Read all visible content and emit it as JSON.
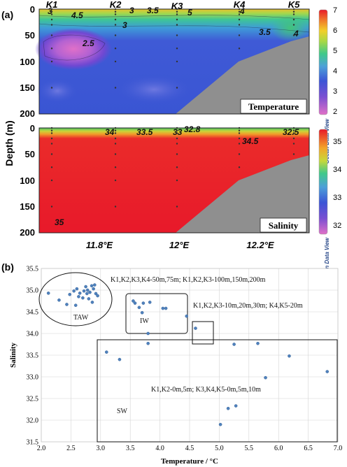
{
  "chart_data": [
    {
      "type": "heatmap",
      "panel_label": "(a)",
      "title": "Temperature",
      "ylabel": "Depth (m)",
      "ylim": [
        200,
        0
      ],
      "yticks": [
        0,
        50,
        100,
        150,
        200
      ],
      "stations": [
        "K1",
        "K2",
        "K3",
        "K4",
        "K5"
      ],
      "contour_labels": [
        "4.5",
        "3",
        "3.5",
        "3",
        "5",
        "4",
        "3.5",
        "4",
        "2.5",
        "3"
      ],
      "colorbar": {
        "min": 2,
        "max": 7,
        "ticks": [
          7,
          6,
          5,
          4,
          3,
          2
        ],
        "label": "Ocean Data View"
      }
    },
    {
      "type": "heatmap",
      "title": "Salinity",
      "ylim": [
        200,
        0
      ],
      "yticks": [
        0,
        50,
        100,
        150,
        200
      ],
      "xticks": [
        "11.8°E",
        "12°E",
        "12.2°E"
      ],
      "contour_labels": [
        "34",
        "33.5",
        "33",
        "32.8",
        "34.5",
        "32.5",
        "35"
      ],
      "colorbar": {
        "min": 32,
        "max": 35,
        "ticks": [
          35,
          34,
          33,
          32
        ],
        "label": "Ocean Data View"
      }
    },
    {
      "type": "scatter",
      "panel_label": "(b)",
      "xlabel": "Temperature / °C",
      "ylabel": "Salinity",
      "xlim": [
        2.0,
        7.0
      ],
      "ylim": [
        31.5,
        35.5
      ],
      "xticks": [
        "2.0",
        "2.5",
        "3.0",
        "3.5",
        "4.0",
        "4.5",
        "5.0",
        "5.5",
        "6.0",
        "6.5",
        "7.0"
      ],
      "yticks": [
        "35.5",
        "35.0",
        "34.5",
        "34.0",
        "33.5",
        "33.0",
        "32.5",
        "32.0",
        "31.5"
      ],
      "grid": true,
      "points": [
        [
          2.12,
          34.93
        ],
        [
          2.3,
          34.77
        ],
        [
          2.43,
          34.67
        ],
        [
          2.48,
          34.9
        ],
        [
          2.55,
          34.98
        ],
        [
          2.58,
          34.65
        ],
        [
          2.6,
          35.03
        ],
        [
          2.63,
          34.85
        ],
        [
          2.65,
          34.93
        ],
        [
          2.7,
          34.82
        ],
        [
          2.72,
          34.98
        ],
        [
          2.75,
          35.08
        ],
        [
          2.77,
          34.92
        ],
        [
          2.78,
          35.0
        ],
        [
          2.8,
          34.8
        ],
        [
          2.82,
          34.95
        ],
        [
          2.85,
          35.1
        ],
        [
          2.86,
          34.72
        ],
        [
          2.88,
          35.03
        ],
        [
          2.92,
          34.92
        ],
        [
          2.95,
          34.87
        ],
        [
          2.9,
          35.12
        ],
        [
          3.55,
          34.75
        ],
        [
          3.58,
          34.7
        ],
        [
          3.65,
          34.6
        ],
        [
          3.7,
          34.48
        ],
        [
          3.72,
          34.7
        ],
        [
          3.8,
          34.0
        ],
        [
          3.83,
          34.72
        ],
        [
          4.05,
          34.58
        ],
        [
          4.1,
          34.58
        ],
        [
          4.45,
          34.4
        ],
        [
          4.6,
          34.12
        ],
        [
          3.1,
          33.57
        ],
        [
          3.32,
          33.4
        ],
        [
          3.8,
          33.77
        ],
        [
          5.25,
          33.75
        ],
        [
          5.65,
          33.77
        ],
        [
          6.18,
          33.48
        ],
        [
          6.82,
          33.12
        ],
        [
          5.78,
          32.98
        ],
        [
          5.15,
          32.27
        ],
        [
          5.28,
          32.33
        ],
        [
          5.02,
          31.9
        ]
      ],
      "annotations": [
        "K1,K2,K3,K4-50m,75m; K1,K2,K3-100m,150m,200m",
        "K1,K2,K3-10m,20m,30m; K4,K5-20m",
        "K1,K2-0m,5m; K3,K4,K5-0m,5m,10m"
      ],
      "region_labels": [
        "TAW",
        "IW",
        "SW"
      ]
    }
  ],
  "colors": {
    "land": "#8f8f8f",
    "point": "#4f81bd",
    "grid": "#d4d4d4",
    "station_dot": "#333333"
  }
}
